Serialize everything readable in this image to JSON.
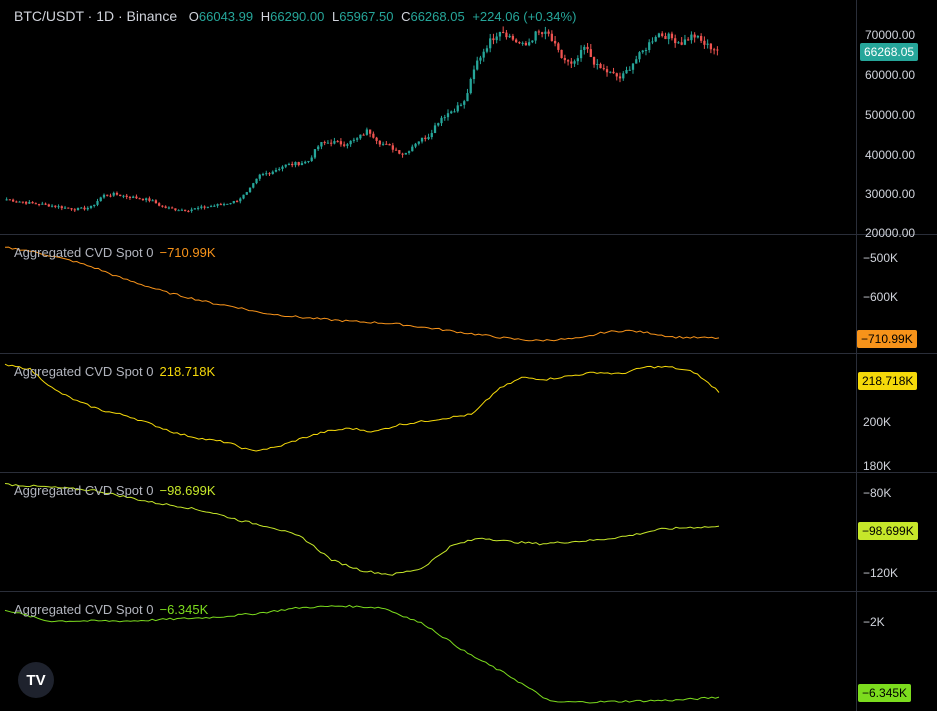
{
  "header": {
    "symbol": "BTC/USDT · 1D · Binance",
    "o_label": "O",
    "o_value": "66043.99",
    "h_label": "H",
    "h_value": "66290.00",
    "l_label": "L",
    "l_value": "65967.50",
    "c_label": "C",
    "c_value": "66268.05",
    "change": "+224.06 (+0.34%)"
  },
  "logo_text": "TV",
  "colors": {
    "up": "#26a69a",
    "down": "#ef5350",
    "cvd1": "#f7931a",
    "cvd2": "#f5d90a",
    "cvd3": "#c6e72a",
    "cvd4": "#7cdc1e"
  },
  "chart_data": [
    {
      "type": "candlestick",
      "title": "BTC/USDT · 1D · Binance",
      "ylim": [
        20000,
        75000
      ],
      "y_ticks": [
        "70000.00",
        "60000.00",
        "50000.00",
        "40000.00",
        "30000.00",
        "20000.00"
      ],
      "last_value": "66268.05",
      "approx_closes": [
        28500,
        28000,
        27500,
        27200,
        26800,
        26300,
        26000,
        26500,
        29500,
        29800,
        29200,
        28800,
        28200,
        26500,
        26000,
        25800,
        26300,
        26800,
        27300,
        28000,
        30200,
        34500,
        35500,
        37000,
        37500,
        38000,
        42500,
        43000,
        42500,
        43500,
        46000,
        42800,
        41500,
        39800,
        43000,
        44500,
        49000,
        51000,
        53000,
        63000,
        68000,
        71500,
        69000,
        67000,
        70500,
        70000,
        64500,
        62000,
        67000,
        62000,
        60500,
        59000,
        63000,
        66500,
        70500,
        69500,
        68000,
        70000,
        67500,
        66268
      ]
    },
    {
      "type": "line",
      "name": "Aggregated CVD Spot 0",
      "value_label": "−710.99K",
      "ylim": [
        -730,
        -455
      ],
      "y_ticks": [
        "−500K",
        "−600K"
      ],
      "values": [
        -462,
        -470,
        -485,
        -500,
        -520,
        -545,
        -565,
        -585,
        -600,
        -615,
        -625,
        -640,
        -648,
        -655,
        -660,
        -665,
        -668,
        -672,
        -680,
        -688,
        -697,
        -705,
        -713,
        -718,
        -715,
        -712,
        -695,
        -690,
        -697,
        -708,
        -710,
        -711
      ]
    },
    {
      "type": "line",
      "name": "Aggregated CVD Spot 0",
      "value_label": "218.718K",
      "ylim": [
        177,
        237
      ],
      "y_ticks": [
        "200K",
        "180K"
      ],
      "values": [
        234,
        232,
        220,
        213,
        208,
        205,
        200,
        195,
        192,
        190,
        185,
        187,
        192,
        196,
        198,
        196,
        200,
        202,
        204,
        206,
        220,
        227,
        226,
        228,
        230,
        229,
        233,
        233,
        230,
        219
      ]
    },
    {
      "type": "line",
      "name": "Aggregated CVD Spot 0",
      "value_label": "−98.699K",
      "ylim": [
        -127,
        -75
      ],
      "y_ticks": [
        "−80K",
        "−120K"
      ],
      "values": [
        -78,
        -79,
        -80,
        -81,
        -84,
        -87,
        -89,
        -92,
        -96,
        -99,
        -104,
        -115,
        -120,
        -122,
        -119,
        -108,
        -104,
        -106,
        -107,
        -106,
        -105,
        -103,
        -100,
        -99,
        -98.7
      ]
    },
    {
      "type": "line",
      "name": "Aggregated CVD Spot 0",
      "value_label": "−6.345K",
      "ylim": [
        -6.6,
        -1.4
      ],
      "y_ticks": [
        "−2K"
      ],
      "values": [
        -1.7,
        -2.3,
        -2.3,
        -2.3,
        -2.2,
        -2.1,
        -1.9,
        -1.6,
        -1.5,
        -1.6,
        -2.5,
        -4.0,
        -5.2,
        -6.6,
        -6.6,
        -6.55,
        -6.5,
        -6.35
      ]
    }
  ]
}
